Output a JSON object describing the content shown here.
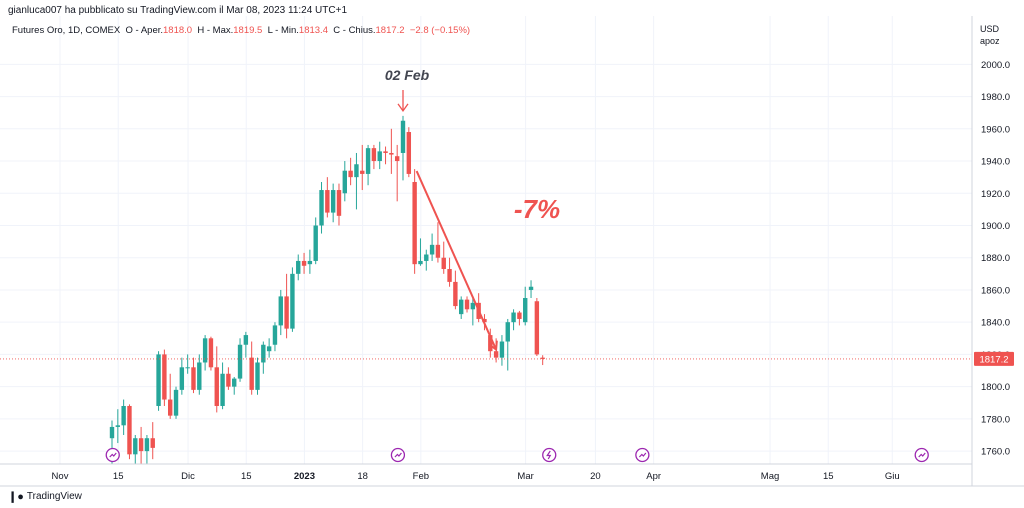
{
  "publisher_line": "gianluca007 ha pubblicato su TradingView.com il Mar 08, 2023 11:24 UTC+1",
  "legend": {
    "symbol": "Futures Oro, 1D, COMEX",
    "open_label": "O - Aper.",
    "open": "1818.0",
    "high_label": "H - Max.",
    "high": "1819.5",
    "low_label": "L - Min.",
    "low": "1813.4",
    "close_label": "C - Chius.",
    "close": "1817.2",
    "change": "−2.8 (−0.15%)"
  },
  "currency": "USD",
  "currency_sub": "apoz",
  "price_badge": "1817.2",
  "brand": "TradingView",
  "colors": {
    "up": "#26a69a",
    "down": "#ef5350",
    "event": "#9c27b0",
    "grid": "#f0f3fa"
  },
  "annotations": {
    "peak_label": "02 Feb",
    "drop_label": "-7%"
  },
  "chart_data": {
    "type": "candlestick",
    "y_axis": {
      "min": 1752,
      "max": 2030,
      "ticks": [
        1760,
        1780,
        1800,
        1820,
        1840,
        1860,
        1880,
        1900,
        1920,
        1940,
        1960,
        1980,
        2000
      ],
      "position": "right"
    },
    "x_axis": {
      "ticks": [
        {
          "label": "Nov",
          "bar": 0
        },
        {
          "label": "15",
          "bar": 10
        },
        {
          "label": "Dic",
          "bar": 22
        },
        {
          "label": "15",
          "bar": 32
        },
        {
          "label": "2023",
          "bar": 42
        },
        {
          "label": "18",
          "bar": 52
        },
        {
          "label": "Feb",
          "bar": 62
        },
        {
          "label": "Mar",
          "bar": 80
        },
        {
          "label": "20",
          "bar": 92
        },
        {
          "label": "Apr",
          "bar": 102
        },
        {
          "label": "Mag",
          "bar": 122
        },
        {
          "label": "15",
          "bar": 132
        },
        {
          "label": "Giu",
          "bar": 143
        }
      ]
    },
    "last_price": 1817.2,
    "candles": [
      {
        "o": 1768,
        "h": 1779,
        "l": 1752,
        "c": 1775
      },
      {
        "o": 1775,
        "h": 1786,
        "l": 1765,
        "c": 1776
      },
      {
        "o": 1776,
        "h": 1792,
        "l": 1770,
        "c": 1788
      },
      {
        "o": 1788,
        "h": 1789,
        "l": 1755,
        "c": 1758
      },
      {
        "o": 1758,
        "h": 1770,
        "l": 1752,
        "c": 1768
      },
      {
        "o": 1768,
        "h": 1775,
        "l": 1752,
        "c": 1760
      },
      {
        "o": 1760,
        "h": 1770,
        "l": 1752,
        "c": 1768
      },
      {
        "o": 1768,
        "h": 1778,
        "l": 1755,
        "c": 1762
      },
      {
        "o": 1788,
        "h": 1822,
        "l": 1785,
        "c": 1820
      },
      {
        "o": 1820,
        "h": 1823,
        "l": 1788,
        "c": 1792
      },
      {
        "o": 1792,
        "h": 1808,
        "l": 1780,
        "c": 1782
      },
      {
        "o": 1782,
        "h": 1800,
        "l": 1780,
        "c": 1798
      },
      {
        "o": 1798,
        "h": 1818,
        "l": 1795,
        "c": 1812
      },
      {
        "o": 1812,
        "h": 1820,
        "l": 1808,
        "c": 1812
      },
      {
        "o": 1812,
        "h": 1818,
        "l": 1796,
        "c": 1798
      },
      {
        "o": 1798,
        "h": 1820,
        "l": 1795,
        "c": 1815
      },
      {
        "o": 1815,
        "h": 1832,
        "l": 1810,
        "c": 1830
      },
      {
        "o": 1830,
        "h": 1831,
        "l": 1810,
        "c": 1812
      },
      {
        "o": 1812,
        "h": 1825,
        "l": 1784,
        "c": 1788
      },
      {
        "o": 1788,
        "h": 1815,
        "l": 1786,
        "c": 1808
      },
      {
        "o": 1808,
        "h": 1812,
        "l": 1798,
        "c": 1800
      },
      {
        "o": 1800,
        "h": 1806,
        "l": 1795,
        "c": 1805
      },
      {
        "o": 1805,
        "h": 1830,
        "l": 1803,
        "c": 1826
      },
      {
        "o": 1826,
        "h": 1834,
        "l": 1818,
        "c": 1832
      },
      {
        "o": 1818,
        "h": 1828,
        "l": 1795,
        "c": 1798
      },
      {
        "o": 1798,
        "h": 1818,
        "l": 1795,
        "c": 1815
      },
      {
        "o": 1815,
        "h": 1828,
        "l": 1808,
        "c": 1826
      },
      {
        "o": 1822,
        "h": 1830,
        "l": 1818,
        "c": 1825
      },
      {
        "o": 1826,
        "h": 1840,
        "l": 1822,
        "c": 1838
      },
      {
        "o": 1838,
        "h": 1860,
        "l": 1832,
        "c": 1856
      },
      {
        "o": 1856,
        "h": 1870,
        "l": 1830,
        "c": 1836
      },
      {
        "o": 1836,
        "h": 1874,
        "l": 1834,
        "c": 1870
      },
      {
        "o": 1870,
        "h": 1882,
        "l": 1866,
        "c": 1878
      },
      {
        "o": 1878,
        "h": 1883,
        "l": 1870,
        "c": 1875
      },
      {
        "o": 1876,
        "h": 1885,
        "l": 1870,
        "c": 1878
      },
      {
        "o": 1878,
        "h": 1905,
        "l": 1876,
        "c": 1900
      },
      {
        "o": 1900,
        "h": 1927,
        "l": 1895,
        "c": 1922
      },
      {
        "o": 1922,
        "h": 1930,
        "l": 1905,
        "c": 1908
      },
      {
        "o": 1908,
        "h": 1926,
        "l": 1902,
        "c": 1922
      },
      {
        "o": 1922,
        "h": 1926,
        "l": 1900,
        "c": 1906
      },
      {
        "o": 1920,
        "h": 1940,
        "l": 1915,
        "c": 1934
      },
      {
        "o": 1934,
        "h": 1942,
        "l": 1925,
        "c": 1930
      },
      {
        "o": 1930,
        "h": 1945,
        "l": 1910,
        "c": 1938
      },
      {
        "o": 1934,
        "h": 1950,
        "l": 1922,
        "c": 1932
      },
      {
        "o": 1932,
        "h": 1950,
        "l": 1925,
        "c": 1948
      },
      {
        "o": 1948,
        "h": 1950,
        "l": 1935,
        "c": 1940
      },
      {
        "o": 1940,
        "h": 1952,
        "l": 1935,
        "c": 1946
      },
      {
        "o": 1946,
        "h": 1949,
        "l": 1938,
        "c": 1945
      },
      {
        "o": 1945,
        "h": 1960,
        "l": 1932,
        "c": 1944
      },
      {
        "o": 1943,
        "h": 1950,
        "l": 1915,
        "c": 1940
      },
      {
        "o": 1945,
        "h": 1968,
        "l": 1928,
        "c": 1965
      },
      {
        "o": 1958,
        "h": 1961,
        "l": 1930,
        "c": 1932
      },
      {
        "o": 1927,
        "h": 1935,
        "l": 1870,
        "c": 1876
      },
      {
        "o": 1876,
        "h": 1892,
        "l": 1875,
        "c": 1878
      },
      {
        "o": 1878,
        "h": 1885,
        "l": 1872,
        "c": 1882
      },
      {
        "o": 1882,
        "h": 1895,
        "l": 1878,
        "c": 1888
      },
      {
        "o": 1888,
        "h": 1902,
        "l": 1877,
        "c": 1880
      },
      {
        "o": 1880,
        "h": 1890,
        "l": 1870,
        "c": 1873
      },
      {
        "o": 1873,
        "h": 1880,
        "l": 1862,
        "c": 1865
      },
      {
        "o": 1865,
        "h": 1872,
        "l": 1848,
        "c": 1850
      },
      {
        "o": 1845,
        "h": 1856,
        "l": 1842,
        "c": 1854
      },
      {
        "o": 1854,
        "h": 1856,
        "l": 1846,
        "c": 1848
      },
      {
        "o": 1848,
        "h": 1856,
        "l": 1838,
        "c": 1852
      },
      {
        "o": 1852,
        "h": 1858,
        "l": 1840,
        "c": 1842
      },
      {
        "o": 1842,
        "h": 1845,
        "l": 1835,
        "c": 1840
      },
      {
        "o": 1832,
        "h": 1836,
        "l": 1818,
        "c": 1822
      },
      {
        "o": 1822,
        "h": 1830,
        "l": 1815,
        "c": 1818
      },
      {
        "o": 1818,
        "h": 1832,
        "l": 1813,
        "c": 1828
      },
      {
        "o": 1828,
        "h": 1842,
        "l": 1810,
        "c": 1840
      },
      {
        "o": 1840,
        "h": 1848,
        "l": 1835,
        "c": 1846
      },
      {
        "o": 1846,
        "h": 1847,
        "l": 1838,
        "c": 1842
      },
      {
        "o": 1840,
        "h": 1862,
        "l": 1838,
        "c": 1855
      },
      {
        "o": 1860,
        "h": 1866,
        "l": 1855,
        "c": 1862
      },
      {
        "o": 1853,
        "h": 1855,
        "l": 1819,
        "c": 1820
      },
      {
        "o": 1818,
        "h": 1819.5,
        "l": 1813.4,
        "c": 1817.2
      }
    ],
    "events": [
      {
        "bar": 7,
        "kind": "economic-event"
      },
      {
        "bar": 56,
        "kind": "economic-event"
      },
      {
        "bar": 82,
        "kind": "dividend-flash"
      },
      {
        "bar": 98,
        "kind": "economic-event"
      },
      {
        "bar": 146,
        "kind": "economic-event"
      }
    ]
  }
}
